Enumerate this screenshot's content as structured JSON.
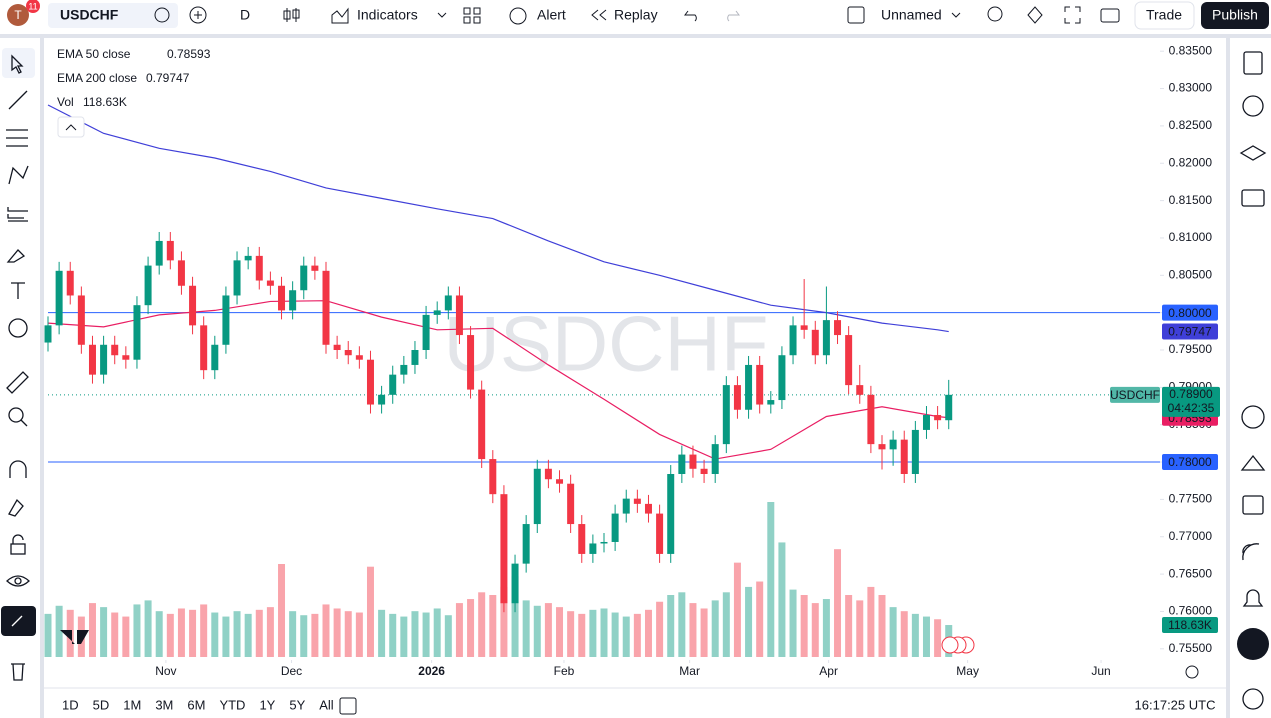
{
  "toolbar": {
    "badge": "11",
    "symbol": "USDCHF",
    "interval": "D",
    "indicators": "Indicators",
    "alert": "Alert",
    "replay": "Replay",
    "layout": "Unnamed",
    "trade": "Trade",
    "publish": "Publish"
  },
  "bottom_bar": {
    "ranges": [
      "1D",
      "5D",
      "1M",
      "3M",
      "6M",
      "YTD",
      "1Y",
      "5Y",
      "All"
    ],
    "clock": "16:17:25 UTC"
  },
  "chart_data": {
    "type": "candlestick",
    "watermark": "USDCHF",
    "countdown": "04:42:35",
    "up_color": "#089981",
    "down_color": "#f23645",
    "ylim": [
      0.7535,
      0.8365
    ],
    "yticks": [
      {
        "value": 0.835,
        "label": "0.83500"
      },
      {
        "value": 0.83,
        "label": "0.83000"
      },
      {
        "value": 0.825,
        "label": "0.82500"
      },
      {
        "value": 0.82,
        "label": "0.82000"
      },
      {
        "value": 0.815,
        "label": "0.81500"
      },
      {
        "value": 0.81,
        "label": "0.81000"
      },
      {
        "value": 0.805,
        "label": "0.80500"
      },
      {
        "value": 0.8,
        "label": "0.80000"
      },
      {
        "value": 0.795,
        "label": "0.79500"
      },
      {
        "value": 0.79,
        "label": "0.79000"
      },
      {
        "value": 0.785,
        "label": "0.78500"
      },
      {
        "value": 0.78,
        "label": "0.78000"
      },
      {
        "value": 0.775,
        "label": "0.77500"
      },
      {
        "value": 0.77,
        "label": "0.77000"
      },
      {
        "value": 0.765,
        "label": "0.76500"
      },
      {
        "value": 0.76,
        "label": "0.76000"
      },
      {
        "value": 0.755,
        "label": "0.75500"
      }
    ],
    "xlim": [
      0,
      100
    ],
    "xticks": [
      {
        "value": 10.6,
        "label": "Nov"
      },
      {
        "value": 21.9,
        "label": "Dec"
      },
      {
        "value": 34.5,
        "label": "2026"
      },
      {
        "value": 46.4,
        "label": "Feb"
      },
      {
        "value": 57.7,
        "label": "Mar"
      },
      {
        "value": 70.2,
        "label": "Apr"
      },
      {
        "value": 82.7,
        "label": "May"
      },
      {
        "value": 94.7,
        "label": "Jun"
      }
    ],
    "hlines": [
      {
        "value": 0.8,
        "label": "0.80000",
        "color": "#2962ff"
      },
      {
        "value": 0.78,
        "label": "0.78000",
        "color": "#2962ff"
      }
    ],
    "last_price": {
      "value": 0.789,
      "label": "0.78900"
    },
    "ohlc": [
      [
        0.796,
        0.7995,
        0.7948,
        0.7983
      ],
      [
        0.7983,
        0.8068,
        0.7971,
        0.8056
      ],
      [
        0.8056,
        0.8068,
        0.8011,
        0.8023
      ],
      [
        0.8023,
        0.8035,
        0.7945,
        0.7957
      ],
      [
        0.7957,
        0.7969,
        0.7905,
        0.7917
      ],
      [
        0.7917,
        0.7969,
        0.7905,
        0.7957
      ],
      [
        0.7957,
        0.7969,
        0.7931,
        0.7943
      ],
      [
        0.7943,
        0.7955,
        0.7925,
        0.7937
      ],
      [
        0.7937,
        0.8022,
        0.7925,
        0.801
      ],
      [
        0.801,
        0.8075,
        0.7998,
        0.8063
      ],
      [
        0.8063,
        0.8108,
        0.8051,
        0.8096
      ],
      [
        0.8096,
        0.8108,
        0.8058,
        0.807
      ],
      [
        0.807,
        0.8082,
        0.8024,
        0.8036
      ],
      [
        0.8036,
        0.8048,
        0.7971,
        0.7983
      ],
      [
        0.7983,
        0.7995,
        0.7911,
        0.7923
      ],
      [
        0.7923,
        0.7969,
        0.7911,
        0.7957
      ],
      [
        0.7957,
        0.8035,
        0.7945,
        0.8023
      ],
      [
        0.8023,
        0.8082,
        0.8011,
        0.807
      ],
      [
        0.807,
        0.8088,
        0.8058,
        0.8076
      ],
      [
        0.8076,
        0.8088,
        0.8031,
        0.8043
      ],
      [
        0.8043,
        0.8055,
        0.8024,
        0.8036
      ],
      [
        0.8036,
        0.8048,
        0.7991,
        0.8003
      ],
      [
        0.8003,
        0.8042,
        0.7991,
        0.803
      ],
      [
        0.803,
        0.8075,
        0.8018,
        0.8063
      ],
      [
        0.8063,
        0.8075,
        0.8044,
        0.8056
      ],
      [
        0.8056,
        0.8068,
        0.7945,
        0.7957
      ],
      [
        0.7957,
        0.7969,
        0.7938,
        0.795
      ],
      [
        0.795,
        0.7962,
        0.7931,
        0.7943
      ],
      [
        0.7943,
        0.7955,
        0.7925,
        0.7937
      ],
      [
        0.7937,
        0.7949,
        0.7865,
        0.7877
      ],
      [
        0.7877,
        0.7902,
        0.7865,
        0.789
      ],
      [
        0.789,
        0.7929,
        0.7878,
        0.7917
      ],
      [
        0.7917,
        0.7942,
        0.7905,
        0.793
      ],
      [
        0.793,
        0.7962,
        0.7918,
        0.795
      ],
      [
        0.795,
        0.8009,
        0.7938,
        0.7997
      ],
      [
        0.7997,
        0.8015,
        0.7985,
        0.8003
      ],
      [
        0.8003,
        0.8035,
        0.7991,
        0.8023
      ],
      [
        0.8023,
        0.8035,
        0.7958,
        0.797
      ],
      [
        0.797,
        0.7982,
        0.7885,
        0.7897
      ],
      [
        0.7897,
        0.7909,
        0.7792,
        0.7804
      ],
      [
        0.7804,
        0.7816,
        0.7745,
        0.7757
      ],
      [
        0.7757,
        0.7769,
        0.7599,
        0.7611
      ],
      [
        0.7611,
        0.7676,
        0.7599,
        0.7664
      ],
      [
        0.7664,
        0.7729,
        0.7652,
        0.7717
      ],
      [
        0.7717,
        0.7803,
        0.7705,
        0.7791
      ],
      [
        0.7791,
        0.7803,
        0.7765,
        0.7777
      ],
      [
        0.7777,
        0.7789,
        0.7759,
        0.7771
      ],
      [
        0.7771,
        0.7783,
        0.7705,
        0.7717
      ],
      [
        0.7717,
        0.7729,
        0.7665,
        0.7677
      ],
      [
        0.7677,
        0.7703,
        0.7665,
        0.7691
      ],
      [
        0.7691,
        0.7705,
        0.7679,
        0.7693
      ],
      [
        0.7693,
        0.7743,
        0.7681,
        0.7731
      ],
      [
        0.7731,
        0.7763,
        0.7719,
        0.7751
      ],
      [
        0.7751,
        0.7763,
        0.7732,
        0.7744
      ],
      [
        0.7744,
        0.7756,
        0.7719,
        0.7731
      ],
      [
        0.7731,
        0.7743,
        0.7665,
        0.7677
      ],
      [
        0.7677,
        0.7796,
        0.7665,
        0.7784
      ],
      [
        0.7784,
        0.7822,
        0.7772,
        0.781
      ],
      [
        0.781,
        0.7822,
        0.7779,
        0.7791
      ],
      [
        0.7791,
        0.7803,
        0.7772,
        0.7784
      ],
      [
        0.7784,
        0.7836,
        0.7772,
        0.7824
      ],
      [
        0.7824,
        0.7915,
        0.7812,
        0.7903
      ],
      [
        0.7903,
        0.7915,
        0.7858,
        0.787
      ],
      [
        0.787,
        0.7942,
        0.7858,
        0.793
      ],
      [
        0.793,
        0.7942,
        0.7865,
        0.7877
      ],
      [
        0.7877,
        0.7895,
        0.7865,
        0.7883
      ],
      [
        0.7883,
        0.7955,
        0.7871,
        0.7943
      ],
      [
        0.7943,
        0.7995,
        0.7931,
        0.7983
      ],
      [
        0.7983,
        0.8045,
        0.7965,
        0.7977
      ],
      [
        0.7977,
        0.7989,
        0.7931,
        0.7943
      ],
      [
        0.7943,
        0.8035,
        0.7931,
        0.799
      ],
      [
        0.799,
        0.8002,
        0.7958,
        0.797
      ],
      [
        0.797,
        0.7982,
        0.7891,
        0.7903
      ],
      [
        0.7903,
        0.793,
        0.7878,
        0.789
      ],
      [
        0.789,
        0.7902,
        0.7812,
        0.7824
      ],
      [
        0.7824,
        0.7836,
        0.779,
        0.7817
      ],
      [
        0.7817,
        0.7842,
        0.7795,
        0.783
      ],
      [
        0.783,
        0.7842,
        0.7772,
        0.7784
      ],
      [
        0.7784,
        0.7855,
        0.7772,
        0.7843
      ],
      [
        0.7843,
        0.7875,
        0.7831,
        0.7863
      ],
      [
        0.7863,
        0.7875,
        0.7844,
        0.7856
      ],
      [
        0.7856,
        0.791,
        0.7844,
        0.789
      ]
    ],
    "volume": {
      "name": "Vol",
      "last_label": "118.63K",
      "values": [
        160,
        190,
        175,
        150,
        200,
        185,
        165,
        150,
        195,
        210,
        170,
        160,
        180,
        175,
        195,
        165,
        150,
        170,
        160,
        175,
        185,
        345,
        170,
        155,
        160,
        195,
        180,
        170,
        165,
        335,
        175,
        160,
        150,
        170,
        165,
        180,
        155,
        200,
        215,
        240,
        230,
        260,
        300,
        210,
        190,
        200,
        185,
        170,
        160,
        175,
        180,
        165,
        150,
        160,
        175,
        205,
        230,
        240,
        200,
        180,
        210,
        240,
        350,
        260,
        280,
        575,
        425,
        250,
        230,
        200,
        215,
        400,
        230,
        210,
        260,
        230,
        185,
        170,
        160,
        150,
        140,
        118.63
      ]
    },
    "ema50": {
      "name": "EMA 50 close",
      "color": "#e91e63",
      "x": [
        0,
        5,
        10,
        15,
        20,
        25,
        30,
        35,
        40,
        45,
        50,
        55,
        60,
        65,
        70,
        75,
        80,
        81
      ],
      "values": [
        0.7986,
        0.7981,
        0.7997,
        0.8003,
        0.8015,
        0.8016,
        0.7994,
        0.7977,
        0.7979,
        0.793,
        0.7884,
        0.7837,
        0.7804,
        0.7817,
        0.7861,
        0.7874,
        0.7861,
        0.78593
      ]
    },
    "ema200": {
      "name": "EMA 200 close",
      "color": "#3f3fd8",
      "x": [
        0,
        5,
        10,
        15,
        20,
        25,
        30,
        35,
        40,
        45,
        50,
        55,
        60,
        65,
        70,
        75,
        80,
        81
      ],
      "values": [
        0.8278,
        0.824,
        0.822,
        0.8207,
        0.8189,
        0.8167,
        0.8153,
        0.8139,
        0.8126,
        0.8096,
        0.8068,
        0.805,
        0.803,
        0.801,
        0.8,
        0.7986,
        0.7977,
        0.79747
      ]
    }
  }
}
